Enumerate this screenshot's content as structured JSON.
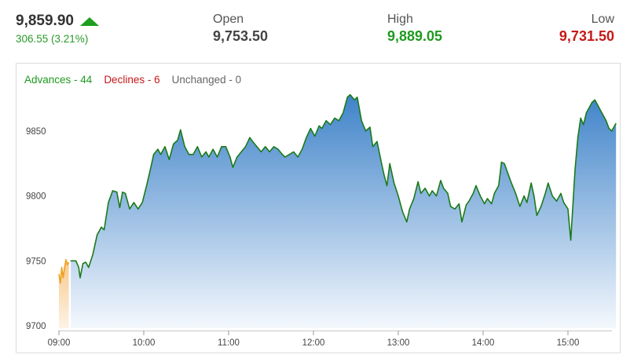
{
  "quote": {
    "last_price": "9,859.90",
    "change": "306.55 (3.21%)",
    "direction_icon": "up-arrow-icon",
    "open_label": "Open",
    "open_value": "9,753.50",
    "high_label": "High",
    "high_value": "9,889.05",
    "low_label": "Low",
    "low_value": "9,731.50"
  },
  "market_breadth": {
    "advances": "Advances - 44",
    "declines": "Declines - 6",
    "unchanged": "Unchanged - 0"
  },
  "colors": {
    "up": "#1e9e1e",
    "down": "#c61919",
    "line": "#1a7a1a",
    "pre_open": "#f0a020",
    "fill_top": "#3f83c9",
    "fill_bottom": "#f4f8fd"
  },
  "chart_data": {
    "type": "area",
    "title": "",
    "xlabel": "",
    "ylabel": "",
    "x_ticks": [
      "09:00",
      "10:00",
      "11:00",
      "12:00",
      "13:00",
      "14:00",
      "15:00"
    ],
    "y_ticks": [
      9700,
      9750,
      9800,
      9850
    ],
    "ylim": [
      9697,
      9882
    ],
    "xlim": [
      "09:00",
      "15:34"
    ],
    "grid": false,
    "series": [
      {
        "segment": "pre-open",
        "points": [
          [
            "09:00",
            9740
          ],
          [
            "09:01",
            9733
          ],
          [
            "09:02",
            9745
          ],
          [
            "09:03",
            9737
          ],
          [
            "09:04",
            9745
          ],
          [
            "09:05",
            9751
          ],
          [
            "09:06",
            9747
          ],
          [
            "09:07",
            9749
          ]
        ]
      },
      {
        "segment": "session",
        "points": [
          [
            "09:08",
            9750
          ],
          [
            "09:12",
            9750
          ],
          [
            "09:14",
            9745
          ],
          [
            "09:15",
            9737
          ],
          [
            "09:17",
            9748
          ],
          [
            "09:19",
            9749
          ],
          [
            "09:21",
            9745
          ],
          [
            "09:24",
            9755
          ],
          [
            "09:27",
            9770
          ],
          [
            "09:30",
            9776
          ],
          [
            "09:32",
            9774
          ],
          [
            "09:35",
            9795
          ],
          [
            "09:38",
            9804
          ],
          [
            "09:41",
            9803
          ],
          [
            "09:43",
            9791
          ],
          [
            "09:45",
            9803
          ],
          [
            "09:47",
            9802
          ],
          [
            "09:50",
            9790
          ],
          [
            "09:53",
            9795
          ],
          [
            "09:56",
            9790
          ],
          [
            "09:59",
            9795
          ],
          [
            "10:02",
            9808
          ],
          [
            "10:05",
            9822
          ],
          [
            "10:07",
            9832
          ],
          [
            "10:10",
            9836
          ],
          [
            "10:12",
            9832
          ],
          [
            "10:15",
            9838
          ],
          [
            "10:18",
            9828
          ],
          [
            "10:21",
            9840
          ],
          [
            "10:24",
            9843
          ],
          [
            "10:26",
            9851
          ],
          [
            "10:29",
            9838
          ],
          [
            "10:32",
            9832
          ],
          [
            "10:35",
            9832
          ],
          [
            "10:38",
            9838
          ],
          [
            "10:41",
            9830
          ],
          [
            "10:44",
            9834
          ],
          [
            "10:46",
            9830
          ],
          [
            "10:49",
            9836
          ],
          [
            "10:52",
            9830
          ],
          [
            "10:55",
            9838
          ],
          [
            "10:58",
            9838
          ],
          [
            "11:01",
            9830
          ],
          [
            "11:03",
            9822
          ],
          [
            "11:06",
            9830
          ],
          [
            "11:09",
            9834
          ],
          [
            "11:12",
            9838
          ],
          [
            "11:15",
            9845
          ],
          [
            "11:17",
            9842
          ],
          [
            "11:20",
            9838
          ],
          [
            "11:23",
            9834
          ],
          [
            "11:26",
            9838
          ],
          [
            "11:29",
            9834
          ],
          [
            "11:32",
            9838
          ],
          [
            "11:35",
            9836
          ],
          [
            "11:38",
            9832
          ],
          [
            "11:40",
            9830
          ],
          [
            "11:43",
            9832
          ],
          [
            "11:46",
            9834
          ],
          [
            "11:49",
            9830
          ],
          [
            "11:52",
            9836
          ],
          [
            "11:55",
            9845
          ],
          [
            "11:58",
            9852
          ],
          [
            "12:01",
            9846
          ],
          [
            "12:04",
            9854
          ],
          [
            "12:06",
            9852
          ],
          [
            "12:09",
            9858
          ],
          [
            "12:12",
            9855
          ],
          [
            "12:15",
            9860
          ],
          [
            "12:18",
            9858
          ],
          [
            "12:21",
            9864
          ],
          [
            "12:24",
            9876
          ],
          [
            "12:26",
            9878
          ],
          [
            "12:29",
            9874
          ],
          [
            "12:31",
            9876
          ],
          [
            "12:34",
            9858
          ],
          [
            "12:37",
            9850
          ],
          [
            "12:40",
            9853
          ],
          [
            "12:42",
            9838
          ],
          [
            "12:45",
            9842
          ],
          [
            "12:48",
            9826
          ],
          [
            "12:50",
            9816
          ],
          [
            "12:52",
            9808
          ],
          [
            "12:54",
            9825
          ],
          [
            "12:57",
            9810
          ],
          [
            "13:00",
            9800
          ],
          [
            "13:03",
            9788
          ],
          [
            "13:06",
            9780
          ],
          [
            "13:08",
            9790
          ],
          [
            "13:11",
            9798
          ],
          [
            "13:14",
            9811
          ],
          [
            "13:16",
            9802
          ],
          [
            "13:19",
            9806
          ],
          [
            "13:22",
            9800
          ],
          [
            "13:24",
            9804
          ],
          [
            "13:27",
            9800
          ],
          [
            "13:30",
            9812
          ],
          [
            "13:32",
            9806
          ],
          [
            "13:35",
            9802
          ],
          [
            "13:37",
            9792
          ],
          [
            "13:40",
            9790
          ],
          [
            "13:43",
            9794
          ],
          [
            "13:45",
            9780
          ],
          [
            "13:48",
            9793
          ],
          [
            "13:50",
            9796
          ],
          [
            "13:53",
            9802
          ],
          [
            "13:55",
            9808
          ],
          [
            "13:58",
            9800
          ],
          [
            "14:01",
            9794
          ],
          [
            "14:03",
            9798
          ],
          [
            "14:06",
            9794
          ],
          [
            "14:08",
            9802
          ],
          [
            "14:11",
            9808
          ],
          [
            "14:13",
            9826
          ],
          [
            "14:15",
            9825
          ],
          [
            "14:18",
            9816
          ],
          [
            "14:20",
            9810
          ],
          [
            "14:23",
            9802
          ],
          [
            "14:26",
            9792
          ],
          [
            "14:29",
            9800
          ],
          [
            "14:31",
            9795
          ],
          [
            "14:34",
            9810
          ],
          [
            "14:36",
            9800
          ],
          [
            "14:38",
            9785
          ],
          [
            "14:41",
            9792
          ],
          [
            "14:44",
            9802
          ],
          [
            "14:46",
            9810
          ],
          [
            "14:49",
            9800
          ],
          [
            "14:52",
            9796
          ],
          [
            "14:55",
            9802
          ],
          [
            "14:57",
            9795
          ],
          [
            "15:00",
            9790
          ],
          [
            "15:02",
            9766
          ],
          [
            "15:05",
            9820
          ],
          [
            "15:07",
            9845
          ],
          [
            "15:09",
            9860
          ],
          [
            "15:11",
            9855
          ],
          [
            "15:13",
            9864
          ],
          [
            "15:15",
            9868
          ],
          [
            "15:17",
            9872
          ],
          [
            "15:19",
            9874
          ],
          [
            "15:21",
            9870
          ],
          [
            "15:24",
            9864
          ],
          [
            "15:27",
            9858
          ],
          [
            "15:29",
            9852
          ],
          [
            "15:31",
            9850
          ],
          [
            "15:34",
            9856
          ]
        ]
      }
    ]
  }
}
